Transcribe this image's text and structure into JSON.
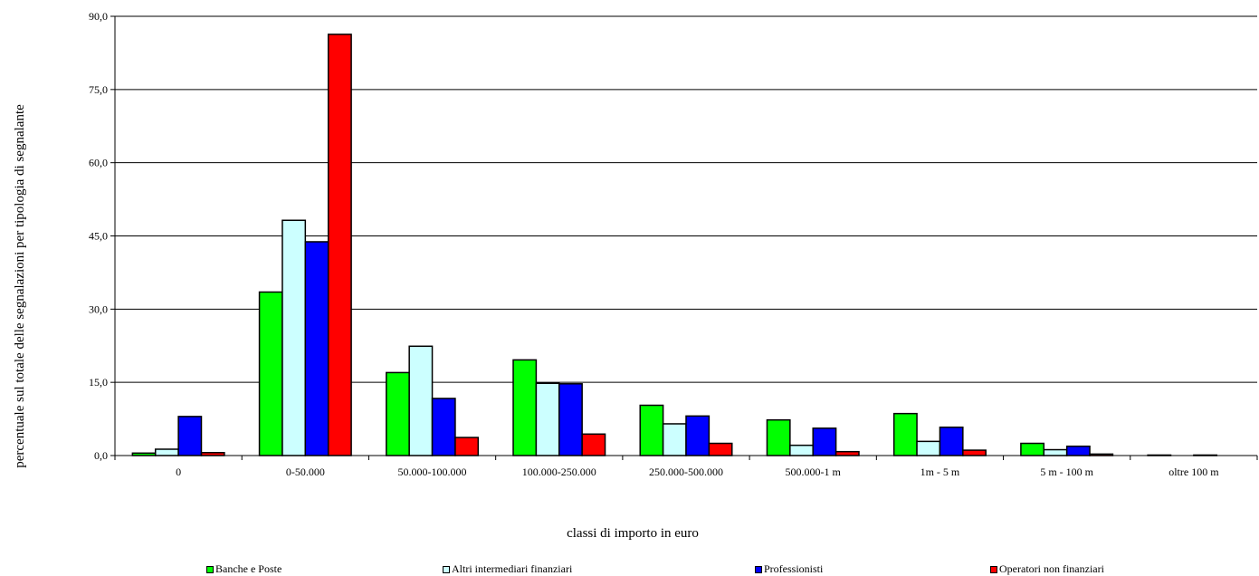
{
  "chart_data": {
    "type": "bar",
    "title": "",
    "xlabel": "classi di importo in euro",
    "ylabel": "percentuale sul totale delle segnalazioni per tipologia di segnalante",
    "ylim": [
      0,
      90
    ],
    "yticks": [
      "0,0",
      "15,0",
      "30,0",
      "45,0",
      "60,0",
      "75,0",
      "90,0"
    ],
    "grid": true,
    "legend_position": "bottom",
    "categories": [
      "0",
      "0-50.000",
      "50.000-100.000",
      "100.000-250.000",
      "250.000-500.000",
      "500.000-1 m",
      "1m - 5 m",
      "5 m - 100 m",
      "oltre 100 m"
    ],
    "series": [
      {
        "name": "Banche e Poste",
        "color": "#00ff00",
        "values": [
          0.5,
          33.5,
          17.0,
          19.6,
          10.3,
          7.3,
          8.6,
          2.5,
          0.1
        ]
      },
      {
        "name": "Altri intermediari finanziari",
        "color": "#ccffff",
        "values": [
          1.3,
          48.2,
          22.4,
          14.8,
          6.5,
          2.1,
          2.9,
          1.2,
          0.0
        ]
      },
      {
        "name": "Professionisti",
        "color": "#0000ff",
        "values": [
          8.0,
          43.8,
          11.7,
          14.7,
          8.1,
          5.6,
          5.8,
          1.9,
          0.1
        ]
      },
      {
        "name": "Operatori non finanziari",
        "color": "#ff0000",
        "values": [
          0.6,
          86.3,
          3.7,
          4.4,
          2.5,
          0.8,
          1.1,
          0.3,
          0.0
        ]
      }
    ]
  }
}
